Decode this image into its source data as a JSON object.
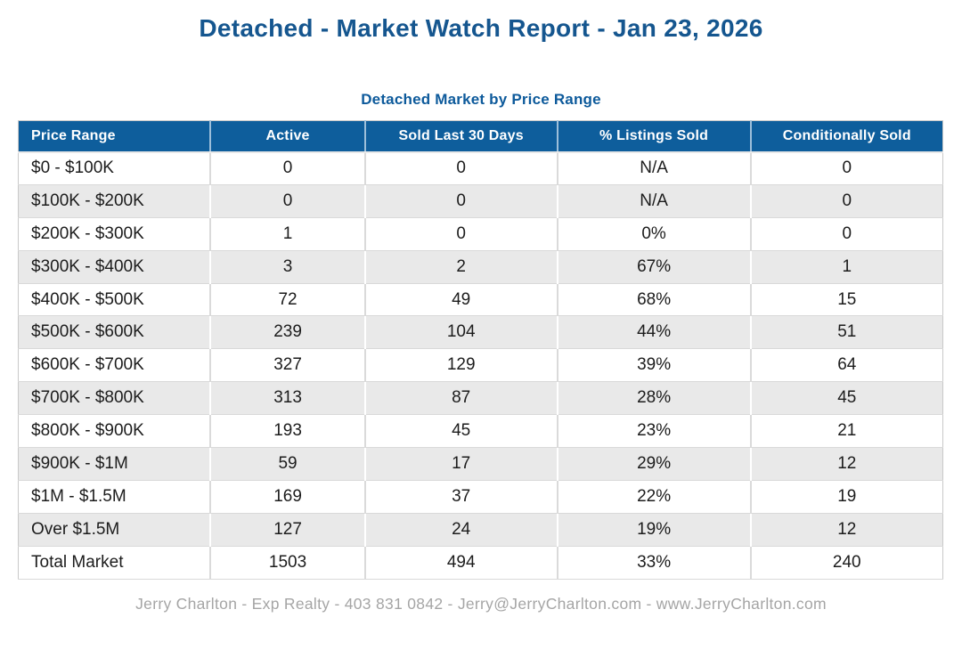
{
  "header": {
    "title": "Detached - Market Watch Report - Jan 23, 2026"
  },
  "table": {
    "title": "Detached Market by Price Range",
    "columns": [
      "Price Range",
      "Active",
      "Sold Last 30 Days",
      "% Listings Sold",
      "Conditionally Sold"
    ],
    "rows": [
      [
        "$0 - $100K",
        "0",
        "0",
        "N/A",
        "0"
      ],
      [
        "$100K - $200K",
        "0",
        "0",
        "N/A",
        "0"
      ],
      [
        "$200K - $300K",
        "1",
        "0",
        "0%",
        "0"
      ],
      [
        "$300K - $400K",
        "3",
        "2",
        "67%",
        "1"
      ],
      [
        "$400K - $500K",
        "72",
        "49",
        "68%",
        "15"
      ],
      [
        "$500K - $600K",
        "239",
        "104",
        "44%",
        "51"
      ],
      [
        "$600K - $700K",
        "327",
        "129",
        "39%",
        "64"
      ],
      [
        "$700K - $800K",
        "313",
        "87",
        "28%",
        "45"
      ],
      [
        "$800K - $900K",
        "193",
        "45",
        "23%",
        "21"
      ],
      [
        "$900K - $1M",
        "59",
        "17",
        "29%",
        "12"
      ],
      [
        "$1M - $1.5M",
        "169",
        "37",
        "22%",
        "19"
      ],
      [
        "Over $1.5M",
        "127",
        "24",
        "19%",
        "12"
      ],
      [
        "Total Market",
        "1503",
        "494",
        "33%",
        "240"
      ]
    ]
  },
  "chart_data": {
    "type": "table",
    "title": "Detached Market by Price Range",
    "categories": [
      "$0 - $100K",
      "$100K - $200K",
      "$200K - $300K",
      "$300K - $400K",
      "$400K - $500K",
      "$500K - $600K",
      "$600K - $700K",
      "$700K - $800K",
      "$800K - $900K",
      "$900K - $1M",
      "$1M - $1.5M",
      "Over $1.5M",
      "Total Market"
    ],
    "series": [
      {
        "name": "Active",
        "values": [
          0,
          0,
          1,
          3,
          72,
          239,
          327,
          313,
          193,
          59,
          169,
          127,
          1503
        ]
      },
      {
        "name": "Sold Last 30 Days",
        "values": [
          0,
          0,
          0,
          2,
          49,
          104,
          129,
          87,
          45,
          17,
          37,
          24,
          494
        ]
      },
      {
        "name": "% Listings Sold",
        "values": [
          "N/A",
          "N/A",
          "0%",
          "67%",
          "68%",
          "44%",
          "39%",
          "28%",
          "23%",
          "29%",
          "22%",
          "19%",
          "33%"
        ]
      },
      {
        "name": "Conditionally Sold",
        "values": [
          0,
          0,
          0,
          1,
          15,
          51,
          64,
          45,
          21,
          12,
          19,
          12,
          240
        ]
      }
    ]
  },
  "footer": {
    "text": "Jerry Charlton - Exp Realty - 403 831 0842 - Jerry@JerryCharlton.com - www.JerryCharlton.com"
  },
  "colors": {
    "title_blue": "#15568f",
    "subtitle_blue": "#0d5a9b",
    "header_bg": "#0e5e9c",
    "header_text": "#ffffff",
    "row_alt_bg": "#e9e9e9",
    "grid_border": "#d9d9d9",
    "body_text": "#1c1c1c",
    "footer_text": "#a5a5a5"
  }
}
